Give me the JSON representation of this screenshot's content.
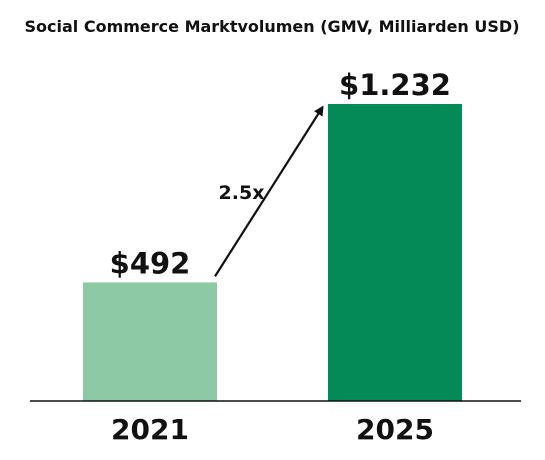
{
  "chart_data": {
    "type": "bar",
    "title": "Social Commerce Marktvolumen (GMV, Milliarden USD)",
    "categories": [
      "2021",
      "2025"
    ],
    "values": [
      492,
      1232
    ],
    "value_labels": [
      "$492",
      "$1.232"
    ],
    "bar_colors": [
      "#8ec9a5",
      "#038a57"
    ],
    "ylim": [
      0,
      1232
    ],
    "grid": false,
    "legend": "none",
    "annotation": {
      "text": "2.5x",
      "type": "arrow",
      "from_category": "2021",
      "to_category": "2025"
    }
  }
}
